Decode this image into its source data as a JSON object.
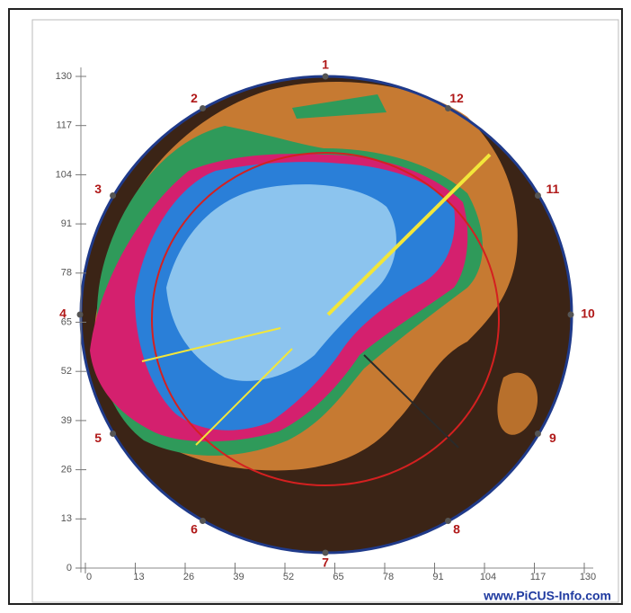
{
  "chart_data": {
    "type": "tomogram",
    "sensors": [
      "1",
      "2",
      "3",
      "4",
      "5",
      "6",
      "7",
      "8",
      "9",
      "10",
      "11",
      "12"
    ],
    "xlim": [
      0,
      130
    ],
    "ylim": [
      0,
      130
    ],
    "xticks": [
      0,
      13,
      26,
      39,
      52,
      65,
      78,
      91,
      104,
      117,
      130
    ],
    "yticks": [
      0,
      13,
      26,
      39,
      52,
      65,
      78,
      91,
      104,
      117,
      130
    ],
    "watermark": "www.PiCUS-Info.com"
  }
}
